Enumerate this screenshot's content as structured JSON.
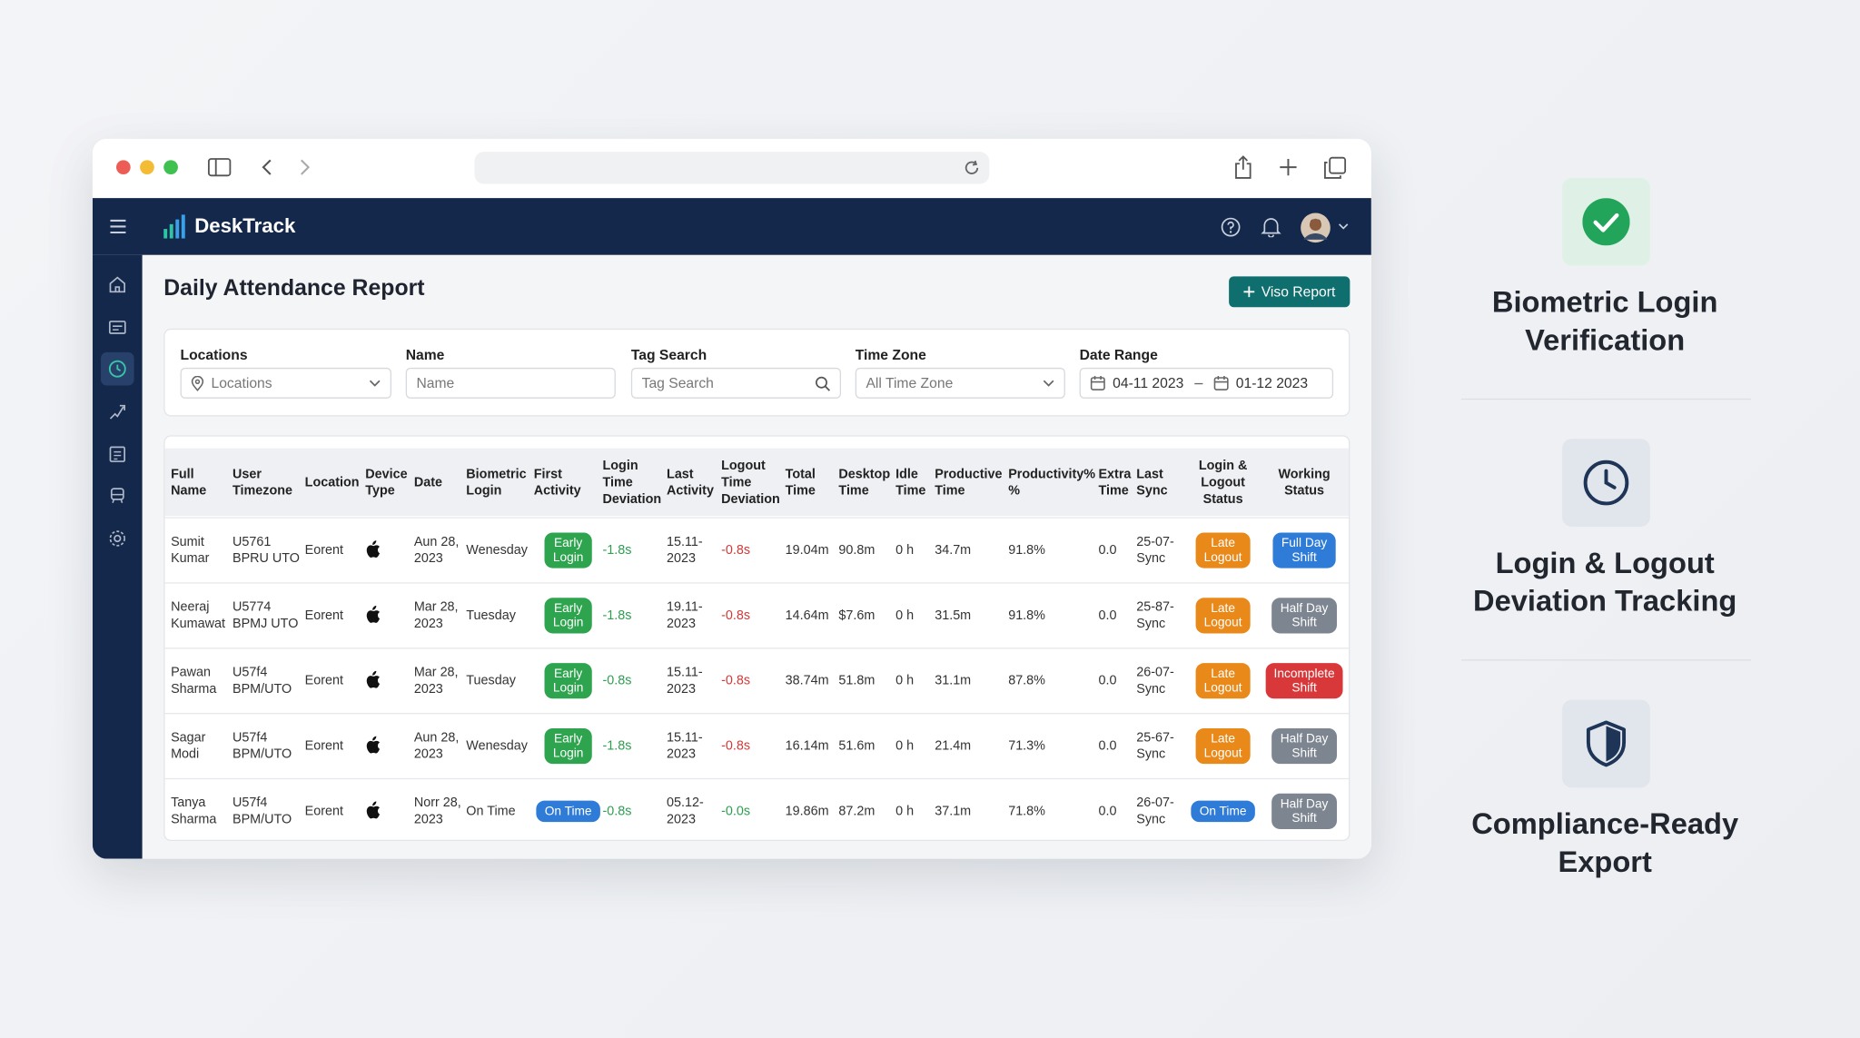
{
  "app": {
    "brand": "DeskTrack"
  },
  "page": {
    "title": "Daily Attendance Report",
    "action": "Viso Report"
  },
  "filters": {
    "locations": {
      "label": "Locations",
      "placeholder": "Locations"
    },
    "name": {
      "label": "Name",
      "placeholder": "Name"
    },
    "tag": {
      "label": "Tag Search",
      "placeholder": "Tag Search"
    },
    "timezone": {
      "label": "Time Zone",
      "placeholder": "All Time Zone"
    },
    "date_range": {
      "label": "Date Range",
      "from": "04-11 2023",
      "to": "01-12 2023"
    }
  },
  "table": {
    "columns": [
      "Full\nName",
      "User\nTimezone",
      "Location",
      "Device\nType",
      "Date",
      "Biometric\nLogin",
      "First\nActivity",
      "Login\nTime\nDeviation",
      "Last\nActivity",
      "Logout\nTime\nDeviation",
      "Total\nTime",
      "Desktop\nTime",
      "Idle\nTime",
      "Productive\nTime",
      "Productivity%\n%",
      "Extra\nTime",
      "Last\nSync",
      "Login &\nLogout\nStatus",
      "Working\nStatus"
    ],
    "rows": [
      [
        "Sumit\nKumar",
        "U5761\nBPRU UTO",
        "Eorent",
        "Aun 28,\n2023",
        "Wenesday",
        {
          "text": "Early\nLogin",
          "badge": "green"
        },
        {
          "text": "-1.8s",
          "tone": "green"
        },
        "15.11-\n2023",
        {
          "text": "-0.8s",
          "tone": "red"
        },
        "19.04m",
        "90.8m",
        "0 h",
        "34.7m",
        "91.8%",
        "0.0",
        "25-07-\nSync",
        {
          "text": "Late\nLogout",
          "badge": "orange"
        },
        {
          "text": "Full Day\nShift",
          "badge": "blue"
        }
      ],
      [
        "Neeraj\nKumawat",
        "U5774\nBPMJ UTO",
        "Eorent",
        "Mar 28,\n2023",
        "Tuesday",
        {
          "text": "Early\nLogin",
          "badge": "green"
        },
        {
          "text": "-1.8s",
          "tone": "green"
        },
        "19.11-\n2023",
        {
          "text": "-0.8s",
          "tone": "red"
        },
        "14.64m",
        "$7.6m",
        "0 h",
        "31.5m",
        "91.8%",
        "0.0",
        "25-87-\nSync",
        {
          "text": "Late\nLogout",
          "badge": "orange"
        },
        {
          "text": "Half Day\nShift",
          "badge": "gray"
        }
      ],
      [
        "Pawan\nSharma",
        "U57f4\nBPM/UTO",
        "Eorent",
        "Mar 28,\n2023",
        "Tuesday",
        {
          "text": "Early\nLogin",
          "badge": "green"
        },
        {
          "text": "-0.8s",
          "tone": "green"
        },
        "15.11-\n2023",
        {
          "text": "-0.8s",
          "tone": "red"
        },
        "38.74m",
        "51.8m",
        "0 h",
        "31.1m",
        "87.8%",
        "0.0",
        "26-07-\nSync",
        {
          "text": "Late\nLogout",
          "badge": "orange"
        },
        {
          "text": "Incomplete\nShift",
          "badge": "red"
        }
      ],
      [
        "Sagar\nModi",
        "U57f4\nBPM/UTO",
        "Eorent",
        "Aun 28,\n2023",
        "Wenesday",
        {
          "text": "Early\nLogin",
          "badge": "green"
        },
        {
          "text": "-1.8s",
          "tone": "green"
        },
        "15.11-\n2023",
        {
          "text": "-0.8s",
          "tone": "red"
        },
        "16.14m",
        "51.6m",
        "0 h",
        "21.4m",
        "71.3%",
        "0.0",
        "25-67-\nSync",
        {
          "text": "Late\nLogout",
          "badge": "orange"
        },
        {
          "text": "Half Day\nShift",
          "badge": "gray"
        }
      ],
      [
        "Tanya\nSharma",
        "U57f4\nBPM/UTO",
        "Eorent",
        "Norr 28,\n2023",
        "On Time",
        {
          "text": "On Time",
          "badge": "blue"
        },
        {
          "text": "-0.8s",
          "tone": "green"
        },
        "05.12-\n2023",
        {
          "text": "-0.0s",
          "tone": "green"
        },
        "19.86m",
        "87.2m",
        "0 h",
        "37.1m",
        "71.8%",
        "0.0",
        "26-07-\nSync",
        {
          "text": "On Time",
          "badge": "blue"
        },
        {
          "text": "Half Day\nShift",
          "badge": "gray"
        }
      ]
    ]
  },
  "features": [
    {
      "title": "Biometric Login Verification"
    },
    {
      "title": "Login & Logout Deviation Tracking"
    },
    {
      "title": "Compliance-Ready Export"
    }
  ]
}
